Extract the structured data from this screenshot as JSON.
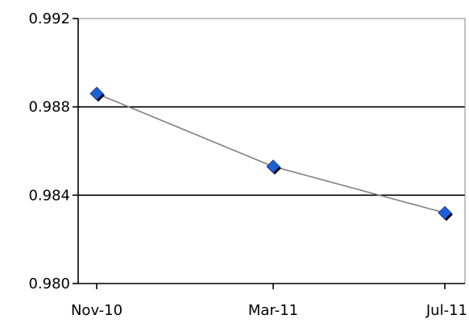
{
  "chart_data": {
    "type": "line",
    "title": "",
    "xlabel": "",
    "ylabel": "",
    "categories": [
      "Nov-10",
      "Mar-11",
      "Jul-11"
    ],
    "series": [
      {
        "values": [
          0.9886,
          0.9853,
          0.9832
        ]
      }
    ],
    "ylim": [
      0.98,
      0.992
    ],
    "yticks": [
      0.98,
      0.984,
      0.988,
      0.992
    ],
    "ytick_labels": [
      "0.980",
      "0.984",
      "0.988",
      "0.992"
    ],
    "grid": true,
    "legend": "none",
    "colors": {
      "line": "#808080",
      "marker": "#1f5fd6",
      "marker_shadow": "#000000",
      "grid": "#000000",
      "axis": "#000000"
    }
  }
}
